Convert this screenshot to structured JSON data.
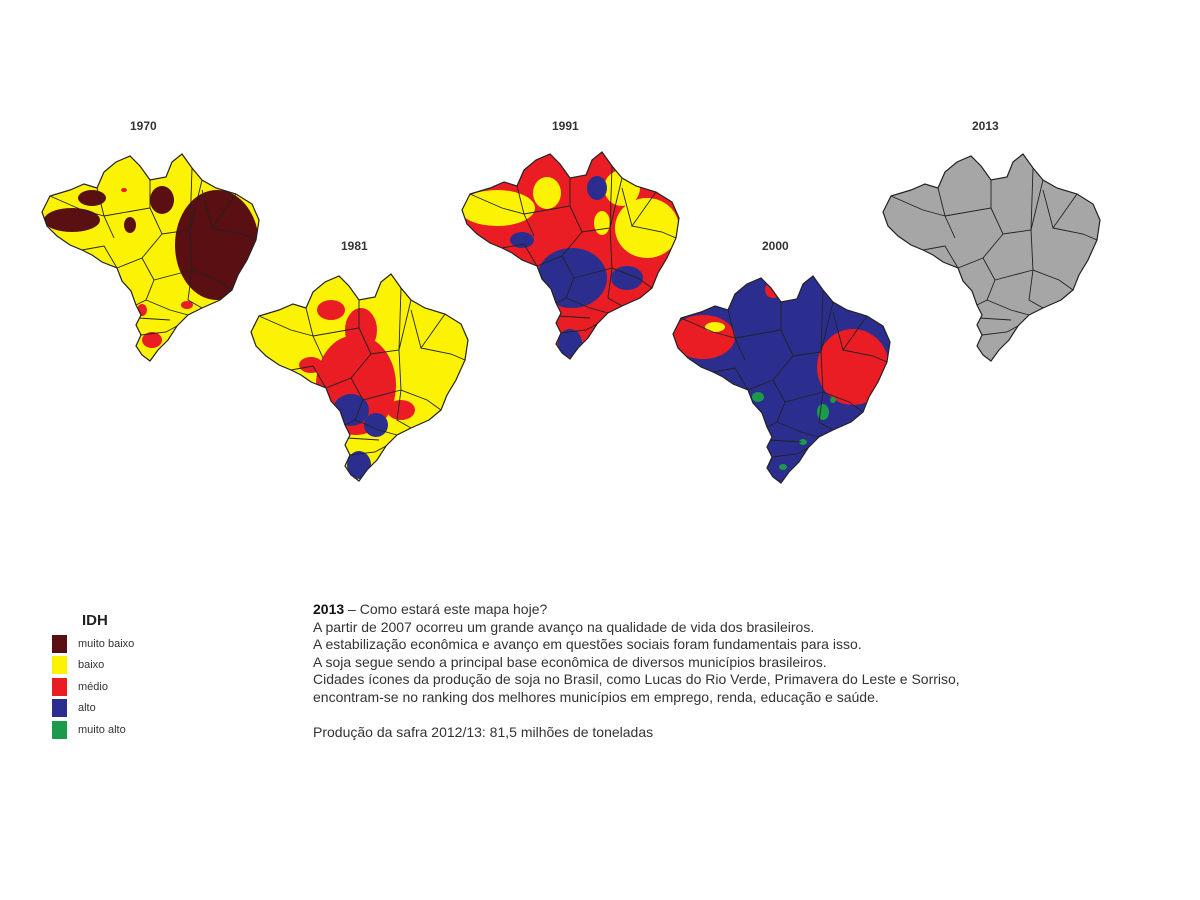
{
  "colors": {
    "muito_baixo": "#5a0f12",
    "baixo": "#fbf204",
    "medio": "#ea1c24",
    "alto": "#2b2e8f",
    "muito_alto": "#1a9a4a",
    "sem_dados": "#a6a6a6",
    "borders": "#222222"
  },
  "maps": [
    {
      "year": "1970"
    },
    {
      "year": "1981"
    },
    {
      "year": "1991"
    },
    {
      "year": "2000"
    },
    {
      "year": "2013"
    }
  ],
  "legend": {
    "title": "IDH",
    "items": [
      {
        "label": "muito baixo",
        "color": "#5a0f12"
      },
      {
        "label": "baixo",
        "color": "#fbf204"
      },
      {
        "label": "médio",
        "color": "#ea1c24"
      },
      {
        "label": "alto",
        "color": "#2b2e8f"
      },
      {
        "label": "muito alto",
        "color": "#1a9a4a"
      }
    ]
  },
  "description": {
    "heading_year": "2013",
    "heading_rest": " – Como estará este mapa hoje?",
    "lines": [
      "A partir de 2007 ocorreu um grande avanço na qualidade de vida dos brasileiros.",
      "A estabilização econômica e avanço em questões sociais foram fundamentais para isso.",
      "A soja segue sendo a principal base econômica de diversos municípios brasileiros.",
      "Cidades ícones da produção de soja no Brasil,  como Lucas do Rio Verde, Primavera do Leste e Sorriso,",
      "encontram-se no ranking dos melhores municípios em emprego, renda, educação e saúde."
    ],
    "production": "Produção da safra 2012/13: 81,5 milhões de toneladas"
  }
}
